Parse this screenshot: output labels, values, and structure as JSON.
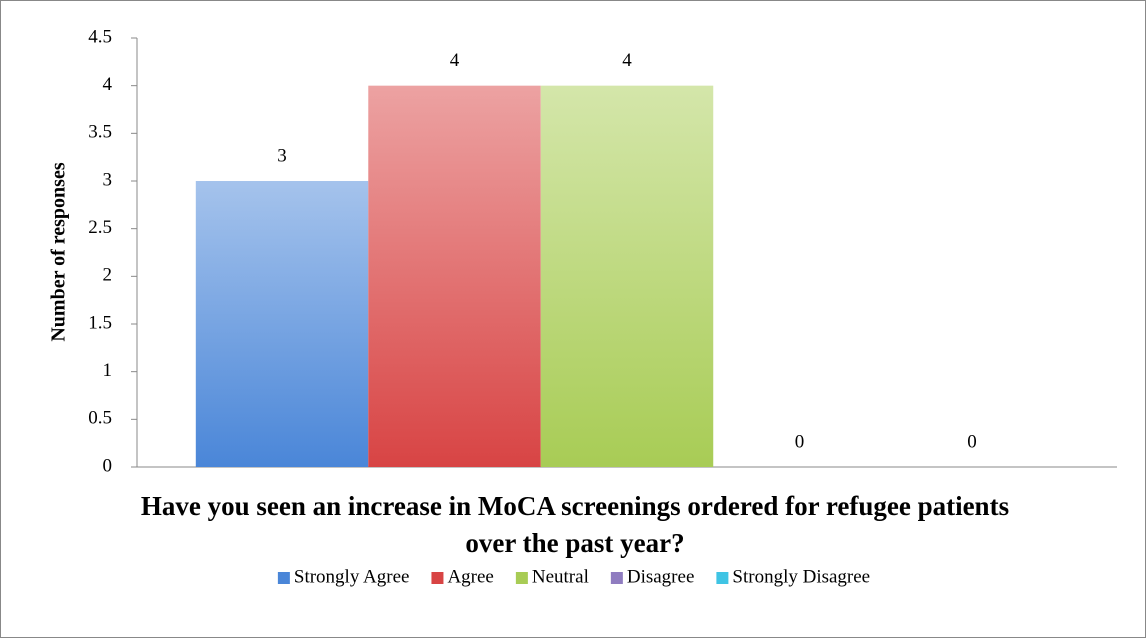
{
  "chart_data": {
    "type": "bar",
    "title": "Have you seen an increase in MoCA screenings ordered for refugee patients over the past year?",
    "y_label": "Number of responses",
    "categories": [
      null
    ],
    "series": [
      {
        "name": "Strongly Agree",
        "color": "#4a86d8",
        "values": [
          3
        ]
      },
      {
        "name": "Agree",
        "color": "#d84444",
        "values": [
          4
        ]
      },
      {
        "name": "Neutral",
        "color": "#a8cc55",
        "values": [
          4
        ]
      },
      {
        "name": "Disagree",
        "color": "#8f7cc0",
        "values": [
          0
        ]
      },
      {
        "name": "Strongly Disagree",
        "color": "#3fc4e4",
        "values": [
          0
        ]
      }
    ],
    "ylim": [
      0,
      4.5
    ],
    "yticks": [
      0,
      0.5,
      1,
      1.5,
      2,
      2.5,
      3,
      3.5,
      4,
      4.5
    ],
    "grid": false,
    "legend": "bottom"
  }
}
